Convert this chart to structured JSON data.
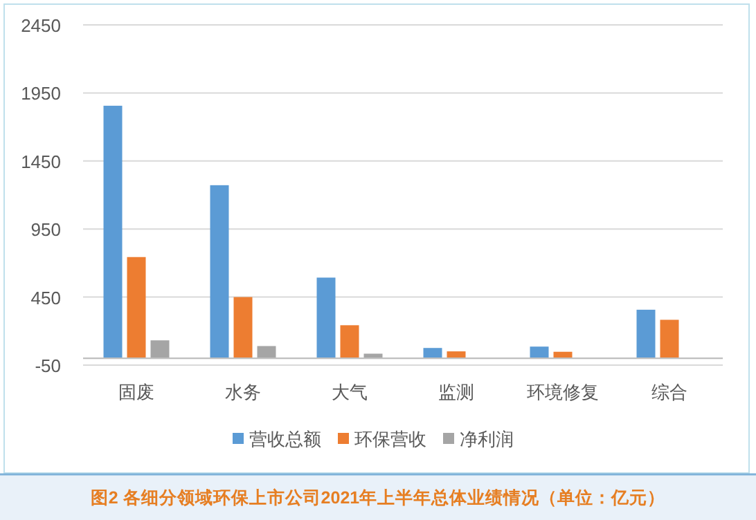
{
  "chart_data": {
    "type": "bar",
    "title": "图2 各细分领域环保上市公司2021年上半年总体业绩情况（单位：亿元）",
    "categories": [
      "固废",
      "水务",
      "大气",
      "监测",
      "环境修复",
      "综合"
    ],
    "series": [
      {
        "name": "营收总额",
        "color": "#5b9bd5",
        "values": [
          1856,
          1272,
          593,
          76,
          86,
          357
        ]
      },
      {
        "name": "环保营收",
        "color": "#ed7d31",
        "values": [
          744,
          450,
          243,
          51,
          48,
          283
        ]
      },
      {
        "name": "净利润",
        "color": "#a5a5a5",
        "values": [
          132,
          90,
          34,
          null,
          null,
          null
        ]
      }
    ],
    "ylim": [
      -50,
      2450
    ],
    "yticks": [
      -50,
      450,
      950,
      1450,
      1950,
      2450
    ],
    "grid": "y",
    "legend": "bottom"
  }
}
